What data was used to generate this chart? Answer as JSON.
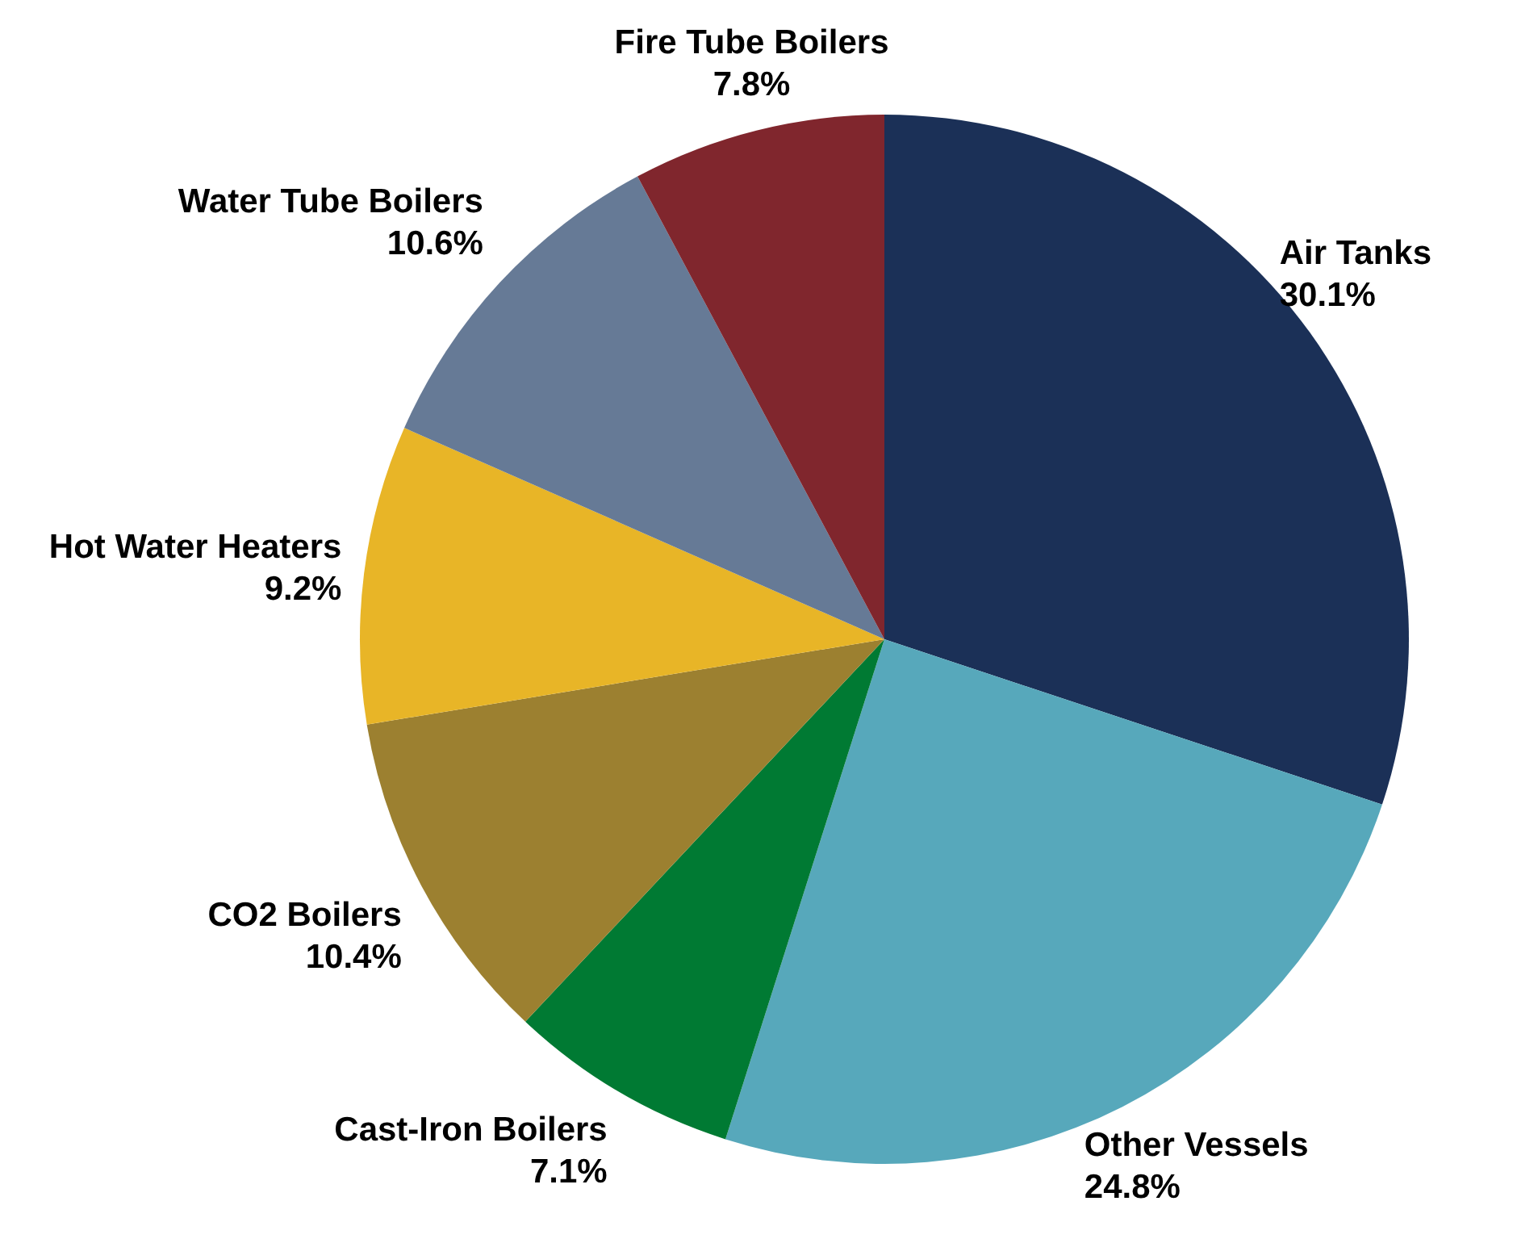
{
  "chart_data": {
    "type": "pie",
    "categories": [
      "Air Tanks",
      "Other Vessels",
      "Cast-Iron Boilers",
      "CO2 Boilers",
      "Hot Water Heaters",
      "Water Tube Boilers",
      "Fire Tube Boilers"
    ],
    "values": [
      30.1,
      24.8,
      7.1,
      10.4,
      9.2,
      10.6,
      7.8
    ],
    "value_labels": [
      "30.1%",
      "24.8%",
      "7.1%",
      "10.4%",
      "9.2%",
      "10.6%",
      "7.8%"
    ],
    "colors": [
      "#1b3057",
      "#57a8bb",
      "#007a33",
      "#9c8030",
      "#e8b527",
      "#667a96",
      "#80262d"
    ]
  }
}
